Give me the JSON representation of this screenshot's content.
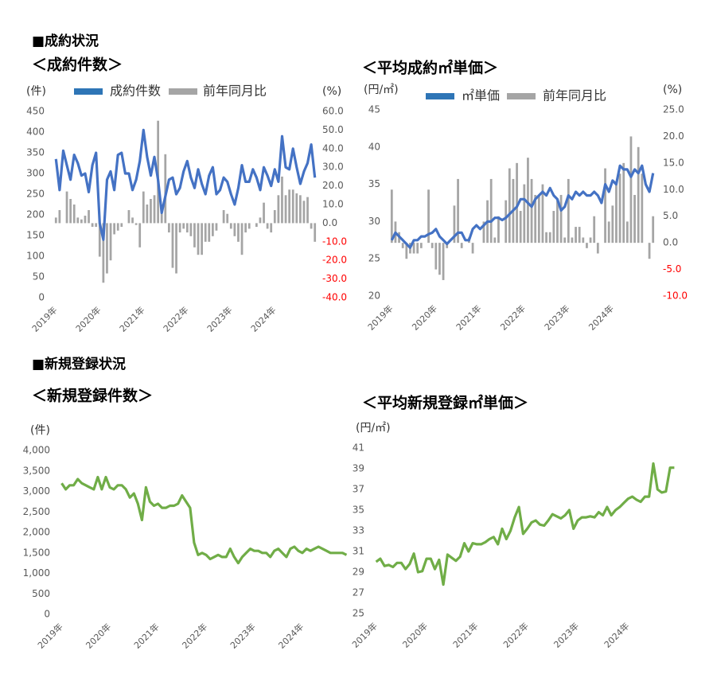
{
  "headings": [
    "■成約状況",
    "■新規登録状況"
  ],
  "chart_data": [
    {
      "type": "combo",
      "title": "＜成約件数＞",
      "y_label": "(件)",
      "y2_label": "(%)",
      "categories": [
        "2019年",
        null,
        null,
        null,
        null,
        null,
        null,
        null,
        null,
        null,
        null,
        null,
        "2020年",
        null,
        null,
        null,
        null,
        null,
        null,
        null,
        null,
        null,
        null,
        null,
        "2021年",
        null,
        null,
        null,
        null,
        null,
        null,
        null,
        null,
        null,
        null,
        null,
        "2022年",
        null,
        null,
        null,
        null,
        null,
        null,
        null,
        null,
        null,
        null,
        null,
        "2023年",
        null,
        null,
        null,
        null,
        null,
        null,
        null,
        null,
        null,
        null,
        null,
        "2024年",
        null,
        null,
        null,
        null,
        null,
        null,
        null,
        null,
        null,
        null,
        null
      ],
      "series": [
        {
          "name": "成約件数",
          "kind": "line",
          "color": "#4472c4",
          "values": [
            335,
            260,
            355,
            320,
            285,
            345,
            325,
            295,
            300,
            255,
            320,
            350,
            180,
            140,
            285,
            305,
            260,
            345,
            350,
            300,
            300,
            260,
            285,
            330,
            405,
            340,
            295,
            340,
            285,
            205,
            245,
            285,
            290,
            250,
            265,
            305,
            330,
            290,
            265,
            310,
            275,
            250,
            295,
            315,
            250,
            260,
            290,
            280,
            250,
            225,
            265,
            320,
            280,
            280,
            310,
            290,
            260,
            315,
            295,
            270,
            310,
            280,
            390,
            315,
            310,
            360,
            315,
            275,
            305,
            325,
            370,
            290
          ]
        },
        {
          "name": "前年同月比",
          "kind": "bar",
          "axis": "y2",
          "color": "#a5a5a5",
          "values": [
            3,
            7,
            0,
            17,
            13,
            10,
            3,
            2,
            4,
            7,
            -2,
            -2,
            -18,
            -32,
            -27,
            -20,
            -6,
            -4,
            -2,
            0,
            7,
            3,
            -1,
            -13,
            17,
            10,
            13,
            15,
            55,
            10,
            37,
            -5,
            -24,
            -27,
            -5,
            -3,
            -5,
            -7,
            -13,
            -17,
            -17,
            -10,
            -10,
            -7,
            -4,
            0,
            7,
            5,
            -3,
            -7,
            -10,
            -17,
            -5,
            -3,
            0,
            -2,
            3,
            11,
            -3,
            -5,
            7,
            15,
            25,
            15,
            18,
            18,
            16,
            15,
            12,
            14,
            -3,
            -10
          ]
        }
      ],
      "ylim": [
        0,
        450
      ],
      "yticks": [
        0,
        50,
        100,
        150,
        200,
        250,
        300,
        350,
        400,
        450
      ],
      "y2lim": [
        -40,
        60
      ],
      "y2ticks": [
        {
          "value": 60,
          "label": "60.0"
        },
        {
          "value": 50,
          "label": "50.0"
        },
        {
          "value": 40,
          "label": "40.0"
        },
        {
          "value": 30,
          "label": "30.0"
        },
        {
          "value": 20,
          "label": "20.0"
        },
        {
          "value": 10,
          "label": "10.0"
        },
        {
          "value": 0,
          "label": "0.0"
        },
        {
          "value": -10,
          "label": "-10.0"
        },
        {
          "value": -20,
          "label": "-20.0"
        },
        {
          "value": -30,
          "label": "-30.0"
        },
        {
          "value": -40,
          "label": "-40.0"
        }
      ],
      "negative_tick_color": "#ff0000",
      "grid": false
    },
    {
      "type": "combo",
      "title": "＜平均成約㎡単価＞",
      "y_label": "(円/㎡)",
      "y2_label": "(%)",
      "categories": [
        "2019年",
        null,
        null,
        null,
        null,
        null,
        null,
        null,
        null,
        null,
        null,
        null,
        "2020年",
        null,
        null,
        null,
        null,
        null,
        null,
        null,
        null,
        null,
        null,
        null,
        "2021年",
        null,
        null,
        null,
        null,
        null,
        null,
        null,
        null,
        null,
        null,
        null,
        "2022年",
        null,
        null,
        null,
        null,
        null,
        null,
        null,
        null,
        null,
        null,
        null,
        "2023年",
        null,
        null,
        null,
        null,
        null,
        null,
        null,
        null,
        null,
        null,
        null,
        "2024年",
        null,
        null,
        null,
        null,
        null,
        null,
        null,
        null,
        null,
        null,
        null
      ],
      "series": [
        {
          "name": "㎡単価",
          "kind": "line",
          "color": "#4472c4",
          "values": [
            27.5,
            28.5,
            28,
            27.5,
            27,
            26.5,
            27.5,
            27.5,
            28,
            28,
            28.3,
            28.5,
            29,
            28,
            27.5,
            27,
            27.5,
            28,
            28.5,
            28.5,
            27.5,
            27.5,
            29,
            29.5,
            29,
            29.5,
            30,
            30,
            30.5,
            30.5,
            30.2,
            30.5,
            31,
            31.5,
            32,
            33,
            33,
            32.5,
            32,
            33,
            33.5,
            34,
            33.5,
            34.5,
            33.5,
            33,
            31.5,
            32,
            33.5,
            33,
            34,
            33.5,
            34,
            33.5,
            33.5,
            34,
            33.5,
            32.5,
            35,
            34,
            35.5,
            35,
            37.5,
            37,
            37,
            36,
            37,
            36.5,
            37.5,
            35,
            34,
            36.5
          ]
        },
        {
          "name": "前年同月比",
          "kind": "bar",
          "axis": "y2",
          "color": "#a5a5a5",
          "values": [
            10,
            4,
            2,
            -1,
            -3,
            -2,
            -2,
            -2,
            -1,
            0,
            10,
            -1,
            -5,
            -6,
            -7,
            -1,
            0,
            7,
            12,
            -1,
            0,
            1,
            -2,
            0,
            0,
            4,
            8,
            12,
            1,
            5,
            0,
            8,
            14,
            12,
            15,
            6,
            11,
            16,
            12,
            9,
            9,
            11,
            2,
            2,
            6,
            8,
            9,
            1,
            12,
            1,
            3,
            3,
            1,
            -1,
            1,
            5,
            -2,
            0,
            14,
            4,
            7,
            11,
            13,
            15,
            4,
            20,
            9,
            18,
            13,
            0,
            -3,
            5
          ]
        }
      ],
      "ylim": [
        20,
        45
      ],
      "yticks": [
        20,
        25,
        30,
        35,
        40,
        45
      ],
      "y2lim": [
        -10,
        25
      ],
      "y2ticks": [
        {
          "value": 25,
          "label": "25.0"
        },
        {
          "value": 20,
          "label": "20.0"
        },
        {
          "value": 15,
          "label": "15.0"
        },
        {
          "value": 10,
          "label": "10.0"
        },
        {
          "value": 5,
          "label": "5.0"
        },
        {
          "value": 0,
          "label": "0.0"
        },
        {
          "value": -5,
          "label": "-5.0"
        },
        {
          "value": -10,
          "label": "-10.0"
        }
      ],
      "negative_tick_color": "#ff0000",
      "grid": false
    },
    {
      "type": "line",
      "title": "＜新規登録件数＞",
      "y_label": "(件)",
      "categories": [
        "2019年",
        null,
        null,
        null,
        null,
        null,
        null,
        null,
        null,
        null,
        null,
        null,
        "2020年",
        null,
        null,
        null,
        null,
        null,
        null,
        null,
        null,
        null,
        null,
        null,
        "2021年",
        null,
        null,
        null,
        null,
        null,
        null,
        null,
        null,
        null,
        null,
        null,
        "2022年",
        null,
        null,
        null,
        null,
        null,
        null,
        null,
        null,
        null,
        null,
        null,
        "2023年",
        null,
        null,
        null,
        null,
        null,
        null,
        null,
        null,
        null,
        null,
        null,
        "2024年",
        null,
        null,
        null,
        null,
        null,
        null,
        null,
        null,
        null,
        null,
        null
      ],
      "series": [
        {
          "name": "新規登録件数",
          "kind": "line",
          "color": "#70ad47",
          "values": [
            3200,
            3050,
            3150,
            3150,
            3300,
            3200,
            3150,
            3100,
            3050,
            3350,
            3050,
            3350,
            3100,
            3050,
            3150,
            3150,
            3050,
            2850,
            2950,
            2700,
            2300,
            3100,
            2750,
            2650,
            2700,
            2600,
            2600,
            2650,
            2650,
            2700,
            2900,
            2750,
            2600,
            1750,
            1450,
            1500,
            1450,
            1350,
            1400,
            1450,
            1400,
            1400,
            1600,
            1400,
            1250,
            1400,
            1500,
            1600,
            1550,
            1550,
            1500,
            1500,
            1400,
            1550,
            1600,
            1500,
            1400,
            1600,
            1650,
            1550,
            1500,
            1600,
            1550,
            1600,
            1650,
            1600,
            1550,
            1500,
            1500,
            1500,
            1500,
            1450
          ]
        }
      ],
      "ylim": [
        0,
        4000
      ],
      "yticks": [
        0,
        500,
        {
          "value": 1000,
          "label": "1,000"
        },
        {
          "value": 1500,
          "label": "1,500"
        },
        {
          "value": 2000,
          "label": "2,000"
        },
        {
          "value": 2500,
          "label": "2,500"
        },
        {
          "value": 3000,
          "label": "3,000"
        },
        {
          "value": 3500,
          "label": "3,500"
        },
        {
          "value": 4000,
          "label": "4,000"
        }
      ],
      "grid": false,
      "legend": false
    },
    {
      "type": "line",
      "title": "＜平均新規登録㎡単価＞",
      "y_label": "(円/㎡)",
      "categories": [
        "2019年",
        null,
        null,
        null,
        null,
        null,
        null,
        null,
        null,
        null,
        null,
        null,
        "2020年",
        null,
        null,
        null,
        null,
        null,
        null,
        null,
        null,
        null,
        null,
        null,
        "2021年",
        null,
        null,
        null,
        null,
        null,
        null,
        null,
        null,
        null,
        null,
        null,
        "2022年",
        null,
        null,
        null,
        null,
        null,
        null,
        null,
        null,
        null,
        null,
        null,
        "2023年",
        null,
        null,
        null,
        null,
        null,
        null,
        null,
        null,
        null,
        null,
        null,
        "2024年",
        null,
        null,
        null,
        null,
        null,
        null,
        null,
        null,
        null,
        null,
        null
      ],
      "series": [
        {
          "name": "平均新規登録㎡単価",
          "kind": "line",
          "color": "#70ad47",
          "values": [
            30,
            30.3,
            29.6,
            29.7,
            29.5,
            29.9,
            29.9,
            29.3,
            29.8,
            30.8,
            29,
            29.1,
            30.3,
            30.3,
            29.3,
            30.2,
            27.8,
            30.7,
            30.4,
            30.1,
            30.5,
            31.8,
            31,
            31.8,
            31.7,
            31.7,
            31.9,
            32.2,
            32.4,
            31.7,
            33.2,
            32.2,
            33,
            34.3,
            35.3,
            32.7,
            33.2,
            33.8,
            34,
            33.6,
            33.5,
            34,
            34.6,
            34.4,
            34.2,
            34.5,
            35,
            33.2,
            34,
            34.3,
            34.3,
            34.4,
            34.3,
            34.8,
            34.5,
            35.3,
            34.5,
            35,
            35.3,
            35.7,
            36.1,
            36.3,
            36,
            35.8,
            36.3,
            36.3,
            39.5,
            37,
            36.7,
            36.8,
            39.1,
            39.1
          ]
        }
      ],
      "ylim": [
        25,
        41
      ],
      "yticks": [
        25,
        27,
        29,
        31,
        33,
        35,
        37,
        39,
        41
      ],
      "grid": false,
      "legend": false
    }
  ]
}
